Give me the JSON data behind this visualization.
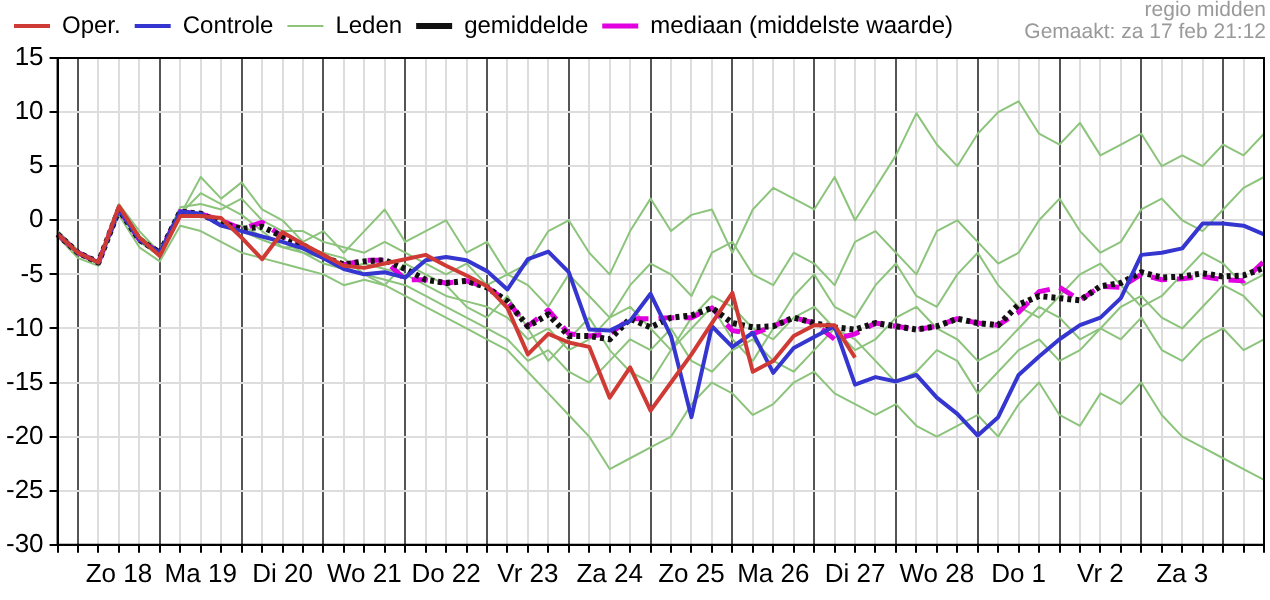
{
  "chart_data": {
    "type": "line",
    "categories": [
      null,
      null,
      null,
      "Zo 18",
      null,
      null,
      null,
      "Ma 19",
      null,
      null,
      null,
      "Di 20",
      null,
      null,
      null,
      "Wo 21",
      null,
      null,
      null,
      "Do 22",
      null,
      null,
      null,
      "Vr 23",
      null,
      null,
      null,
      "Za 24",
      null,
      null,
      null,
      "Zo 25",
      null,
      null,
      null,
      "Ma 26",
      null,
      null,
      null,
      "Di 27",
      null,
      null,
      null,
      "Wo 28",
      null,
      null,
      null,
      "Do 1",
      null,
      null,
      null,
      "Vr 2",
      null,
      null,
      null,
      "Za 3",
      null,
      null,
      null,
      null
    ],
    "series": [
      {
        "name": "Oper.",
        "color": "#d03a35",
        "line_style": "solid",
        "values": [
          -1.3,
          -3,
          -3.9,
          1.3,
          -1.6,
          -3.3,
          0.4,
          0.4,
          0.2,
          -1.6,
          -3.6,
          -1.1,
          -2.2,
          -3.2,
          -4.2,
          -4.4,
          -4,
          -3.6,
          -3.2,
          -4.2,
          -5.1,
          -6.1,
          -8.1,
          -12.4,
          -10.5,
          -11.3,
          -11.7,
          -16.4,
          -13.6,
          -17.6,
          -15,
          -12.4,
          -9.5,
          -6.7,
          -14,
          -13,
          -10.7,
          -9.7,
          -9.7,
          -12.7,
          null,
          null,
          null,
          null,
          null,
          null,
          null,
          null,
          null,
          null,
          null,
          null,
          null,
          null,
          null,
          null,
          null,
          null,
          null,
          null
        ]
      },
      {
        "name": "Controle",
        "color": "#3535d0",
        "line_style": "solid",
        "values": [
          -1.3,
          -3,
          -3.9,
          1,
          -1.8,
          -3,
          0.8,
          0.6,
          -0.5,
          -1,
          -1.5,
          -2,
          -2.6,
          -3.5,
          -4.5,
          -5,
          -4.8,
          -5.3,
          -3.7,
          -3.4,
          -3.7,
          -4.7,
          -6.4,
          -3.6,
          -2.9,
          -4.8,
          -10.1,
          -10.2,
          -9.3,
          -6.8,
          -10.7,
          -18.2,
          -9.8,
          -11.7,
          -10.4,
          -14.1,
          -11.8,
          -10.8,
          -9.8,
          -15.2,
          -14.5,
          -14.9,
          -14.3,
          -16.4,
          -17.9,
          -19.9,
          -18.2,
          -14.3,
          -12.6,
          -11,
          -9.7,
          -9,
          -7.2,
          -3.2,
          -3,
          -2.6,
          -0.3,
          -0.3,
          -0.5,
          -1.3
        ]
      },
      {
        "name": "Leden",
        "color": "#8cc47c",
        "line_style": "solid",
        "values": [
          -1,
          -3,
          -4,
          1.5,
          -1,
          -3,
          0.5,
          4,
          2,
          3.5,
          1,
          0,
          -2,
          -1,
          -3,
          -1,
          1,
          -2,
          -1,
          0,
          -3,
          -2,
          -5,
          -4,
          -1,
          0,
          -3,
          -5,
          -1,
          2,
          -1,
          0.5,
          1,
          -3,
          1,
          3,
          2,
          1,
          4,
          0,
          3,
          6,
          9.9,
          7,
          5,
          8,
          10,
          11,
          8,
          7,
          9,
          6,
          7,
          8,
          5,
          6,
          5,
          7,
          6,
          8
        ]
      },
      {
        "color": "#8cc47c",
        "line_style": "solid",
        "values": [
          -1.5,
          -3.5,
          -4.2,
          0.5,
          -2.5,
          -3.8,
          -0.5,
          -1,
          -2,
          -3,
          -3.5,
          -4,
          -4.5,
          -5,
          -6,
          -5.5,
          -6,
          -7,
          -8,
          -9,
          -10,
          -11,
          -12,
          -14,
          -16,
          -18,
          -20,
          -23,
          -22,
          -21,
          -20,
          -17,
          -15,
          -16,
          -18,
          -17,
          -15,
          -14,
          -16,
          -17,
          -18,
          -17,
          -19,
          -20,
          -19,
          -18,
          -20,
          -17,
          -15,
          -18,
          -19,
          -16,
          -17,
          -15,
          -18,
          -20,
          -21,
          -22,
          -23,
          -24
        ]
      },
      {
        "color": "#8cc47c",
        "line_style": "solid",
        "values": [
          -1.2,
          -3.2,
          -4,
          1,
          -2,
          -3.3,
          0.3,
          0.5,
          -0.5,
          -1,
          -1.8,
          -2.5,
          -3,
          -4,
          -4.5,
          -5,
          -5.5,
          -6,
          -7,
          -8,
          -9,
          -10,
          -11,
          -13,
          -12,
          -14,
          -15,
          -13,
          -11,
          -12,
          -10,
          -13,
          -14,
          -12,
          -11,
          -13,
          -14,
          -12,
          -10,
          -11,
          -13,
          -15,
          -14,
          -12,
          -13,
          -16,
          -14,
          -12,
          -11,
          -13,
          -12,
          -10,
          -11,
          -9,
          -12,
          -13,
          -11,
          -10,
          -12,
          -11
        ]
      },
      {
        "color": "#8cc47c",
        "line_style": "solid",
        "values": [
          -1,
          -2.8,
          -3.8,
          1.3,
          -1.5,
          -2.8,
          1.2,
          1.5,
          1,
          2,
          0,
          -1,
          -1,
          -2,
          -2.5,
          -3,
          -2,
          -3,
          -4,
          -5,
          -4,
          -6,
          -5,
          -6,
          -8,
          -5,
          -7,
          -9,
          -6,
          -4,
          -5,
          -7,
          -3,
          -2,
          -5,
          -6,
          -3,
          -4,
          -6,
          -2,
          -1,
          -3,
          -5,
          -1,
          0,
          -2,
          -4,
          -3,
          0,
          2,
          -1,
          -3,
          -2,
          1,
          2,
          0,
          -1,
          1,
          3,
          4
        ]
      },
      {
        "color": "#8cc47c",
        "line_style": "solid",
        "values": [
          -1.3,
          -3,
          -4,
          1.1,
          -1.8,
          -3,
          0.8,
          0.5,
          -0.3,
          -0.5,
          -1.5,
          -2,
          -3,
          -3.5,
          -4.5,
          -4,
          -4.5,
          -5,
          -6,
          -7,
          -7.5,
          -8,
          -9,
          -11,
          -10,
          -12,
          -11,
          -9,
          -8,
          -10,
          -12,
          -9,
          -7,
          -8,
          -10,
          -11,
          -9,
          -8,
          -10,
          -12,
          -11,
          -9,
          -8,
          -10,
          -11,
          -13,
          -12,
          -10,
          -8,
          -9,
          -11,
          -10,
          -8,
          -7,
          -9,
          -10,
          -8,
          -6,
          -7,
          -9
        ]
      },
      {
        "color": "#8cc47c",
        "line_style": "solid",
        "values": [
          -1.1,
          -3.1,
          -3.9,
          1.4,
          -1.7,
          -3.1,
          0.6,
          2.5,
          1.5,
          0.5,
          -1,
          -2.5,
          -2.5,
          -3,
          -3.5,
          -5,
          -6,
          -4,
          -5,
          -6,
          -8,
          -9,
          -7,
          -10,
          -13,
          -11,
          -9,
          -12,
          -14,
          -15,
          -12,
          -10,
          -8,
          -11,
          -13,
          -10,
          -7,
          -5,
          -8,
          -9,
          -6,
          -4,
          -7,
          -8,
          -5,
          -3,
          -6,
          -8,
          -9,
          -7,
          -5,
          -4,
          -6,
          -8,
          -7,
          -5,
          -3,
          -4,
          -6,
          -5
        ]
      },
      {
        "name": "gemiddelde",
        "color": "#111111",
        "line_style": "dotted",
        "values": [
          -1.3,
          -3,
          -3.9,
          1,
          -1.8,
          -3,
          0.8,
          0.6,
          -0.3,
          -0.8,
          -0.6,
          -1.5,
          -2.3,
          -3.4,
          -4.1,
          -3.8,
          -3.7,
          -4.5,
          -5.5,
          -5.8,
          -5.6,
          -6.2,
          -7.5,
          -9.8,
          -8.7,
          -10.7,
          -10.7,
          -11,
          -9.1,
          -9.9,
          -9,
          -8.8,
          -8.1,
          -9.5,
          -9.9,
          -9.8,
          -9,
          -9.5,
          -9.9,
          -10.1,
          -9.5,
          -9.8,
          -10.1,
          -9.8,
          -9.1,
          -9.5,
          -9.7,
          -7.8,
          -7,
          -7.2,
          -7.4,
          -6.1,
          -5.8,
          -4.8,
          -5.3,
          -5.2,
          -4.9,
          -5.2,
          -5.1,
          -4.4
        ]
      },
      {
        "name": "mediaan (middelste waarde)",
        "color": "#e000e0",
        "line_style": "dashed",
        "values": [
          -1.3,
          -3,
          -3.9,
          1,
          -1.8,
          -3,
          0.8,
          0.6,
          0,
          -0.8,
          -0.2,
          -1.5,
          -2.3,
          -3.4,
          -4.1,
          -3.7,
          -3.7,
          -5.5,
          -5.5,
          -5.8,
          -5.6,
          -6.2,
          -7.5,
          -9.8,
          -8.3,
          -10.5,
          -10.7,
          -10.5,
          -9.1,
          -9.1,
          -9,
          -9,
          -8.1,
          -10.2,
          -10.5,
          -9.8,
          -9,
          -9.5,
          -11,
          -10.5,
          -9.5,
          -9.8,
          -10.1,
          -9.8,
          -9.1,
          -9.5,
          -9.7,
          -8.5,
          -6.6,
          -6.2,
          -7.4,
          -6.1,
          -6.2,
          -5,
          -5.5,
          -5.4,
          -5.2,
          -5.5,
          -5.6,
          -3.8
        ]
      }
    ],
    "ylim": [
      -30,
      15
    ],
    "yticks": [
      -30,
      -25,
      -20,
      -15,
      -10,
      -5,
      0,
      5,
      10,
      15
    ],
    "grid": true,
    "legend": "top left",
    "marker": "none",
    "annotations": [
      "regio midden",
      "Gemaakt: za 17 feb 21:12"
    ]
  }
}
